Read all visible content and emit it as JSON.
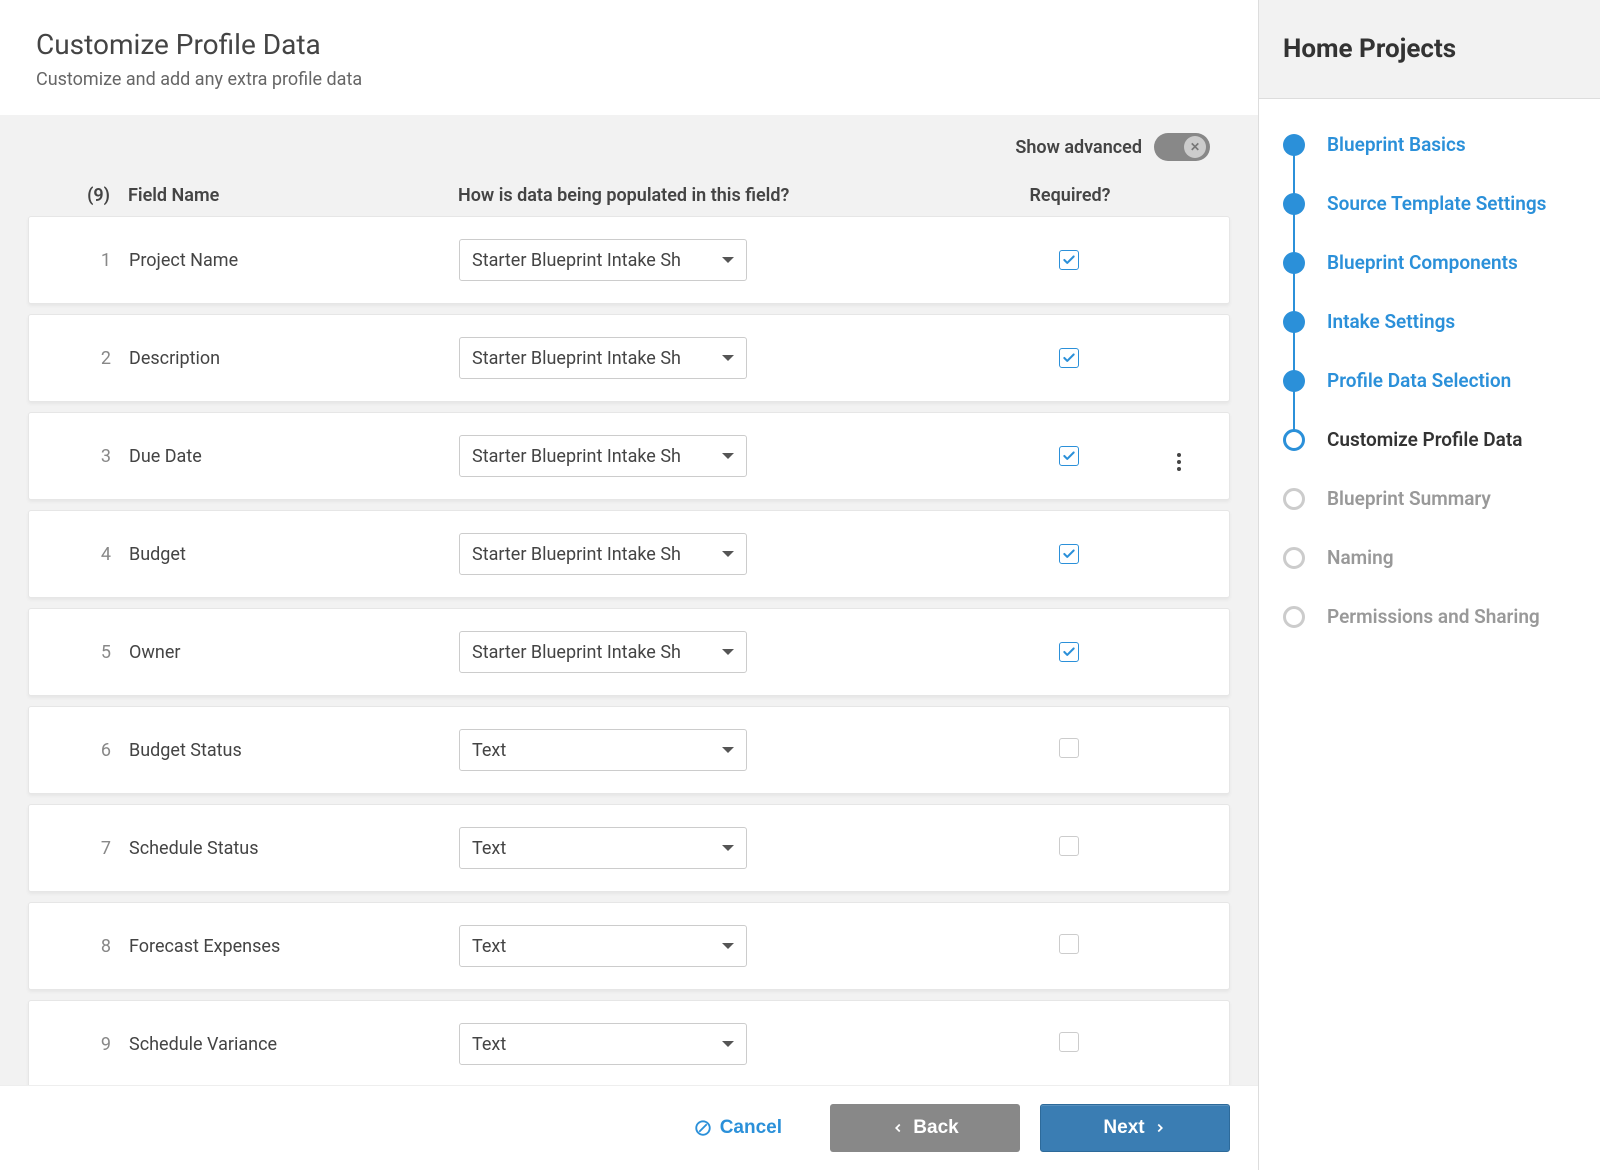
{
  "header": {
    "title": "Customize Profile Data",
    "subtitle": "Customize and add any extra profile data"
  },
  "show_advanced": {
    "label": "Show advanced",
    "enabled": false
  },
  "columns": {
    "count_label": "(9)",
    "name": "Field Name",
    "populated": "How is data being populated in this field?",
    "required": "Required?"
  },
  "rows": [
    {
      "num": "1",
      "name": "Project Name",
      "source": "Starter Blueprint Intake Sh",
      "required": true,
      "menu": false
    },
    {
      "num": "2",
      "name": "Description",
      "source": "Starter Blueprint Intake Sh",
      "required": true,
      "menu": false
    },
    {
      "num": "3",
      "name": "Due Date",
      "source": "Starter Blueprint Intake Sh",
      "required": true,
      "menu": true
    },
    {
      "num": "4",
      "name": "Budget",
      "source": "Starter Blueprint Intake Sh",
      "required": true,
      "menu": false
    },
    {
      "num": "5",
      "name": "Owner",
      "source": "Starter Blueprint Intake Sh",
      "required": true,
      "menu": false
    },
    {
      "num": "6",
      "name": "Budget Status",
      "source": "Text",
      "required": false,
      "menu": false
    },
    {
      "num": "7",
      "name": "Schedule Status",
      "source": "Text",
      "required": false,
      "menu": false
    },
    {
      "num": "8",
      "name": "Forecast Expenses",
      "source": "Text",
      "required": false,
      "menu": false
    },
    {
      "num": "9",
      "name": "Schedule Variance",
      "source": "Text",
      "required": false,
      "menu": false
    }
  ],
  "footer": {
    "cancel": "Cancel",
    "back": "Back",
    "next": "Next"
  },
  "side": {
    "title": "Home Projects",
    "steps": [
      {
        "label": "Blueprint Basics",
        "state": "done"
      },
      {
        "label": "Source Template Settings",
        "state": "done"
      },
      {
        "label": "Blueprint Components",
        "state": "done"
      },
      {
        "label": "Intake Settings",
        "state": "done"
      },
      {
        "label": "Profile Data Selection",
        "state": "done"
      },
      {
        "label": "Customize Profile Data",
        "state": "current"
      },
      {
        "label": "Blueprint Summary",
        "state": "future"
      },
      {
        "label": "Naming",
        "state": "future"
      },
      {
        "label": "Permissions and Sharing",
        "state": "future"
      }
    ]
  },
  "colors": {
    "accent": "#2b90d9",
    "next_button": "#3a7db3",
    "back_button": "#888888",
    "body_bg": "#f2f2f2",
    "border": "#e6e6e6",
    "text": "#444444",
    "muted": "#888888"
  }
}
